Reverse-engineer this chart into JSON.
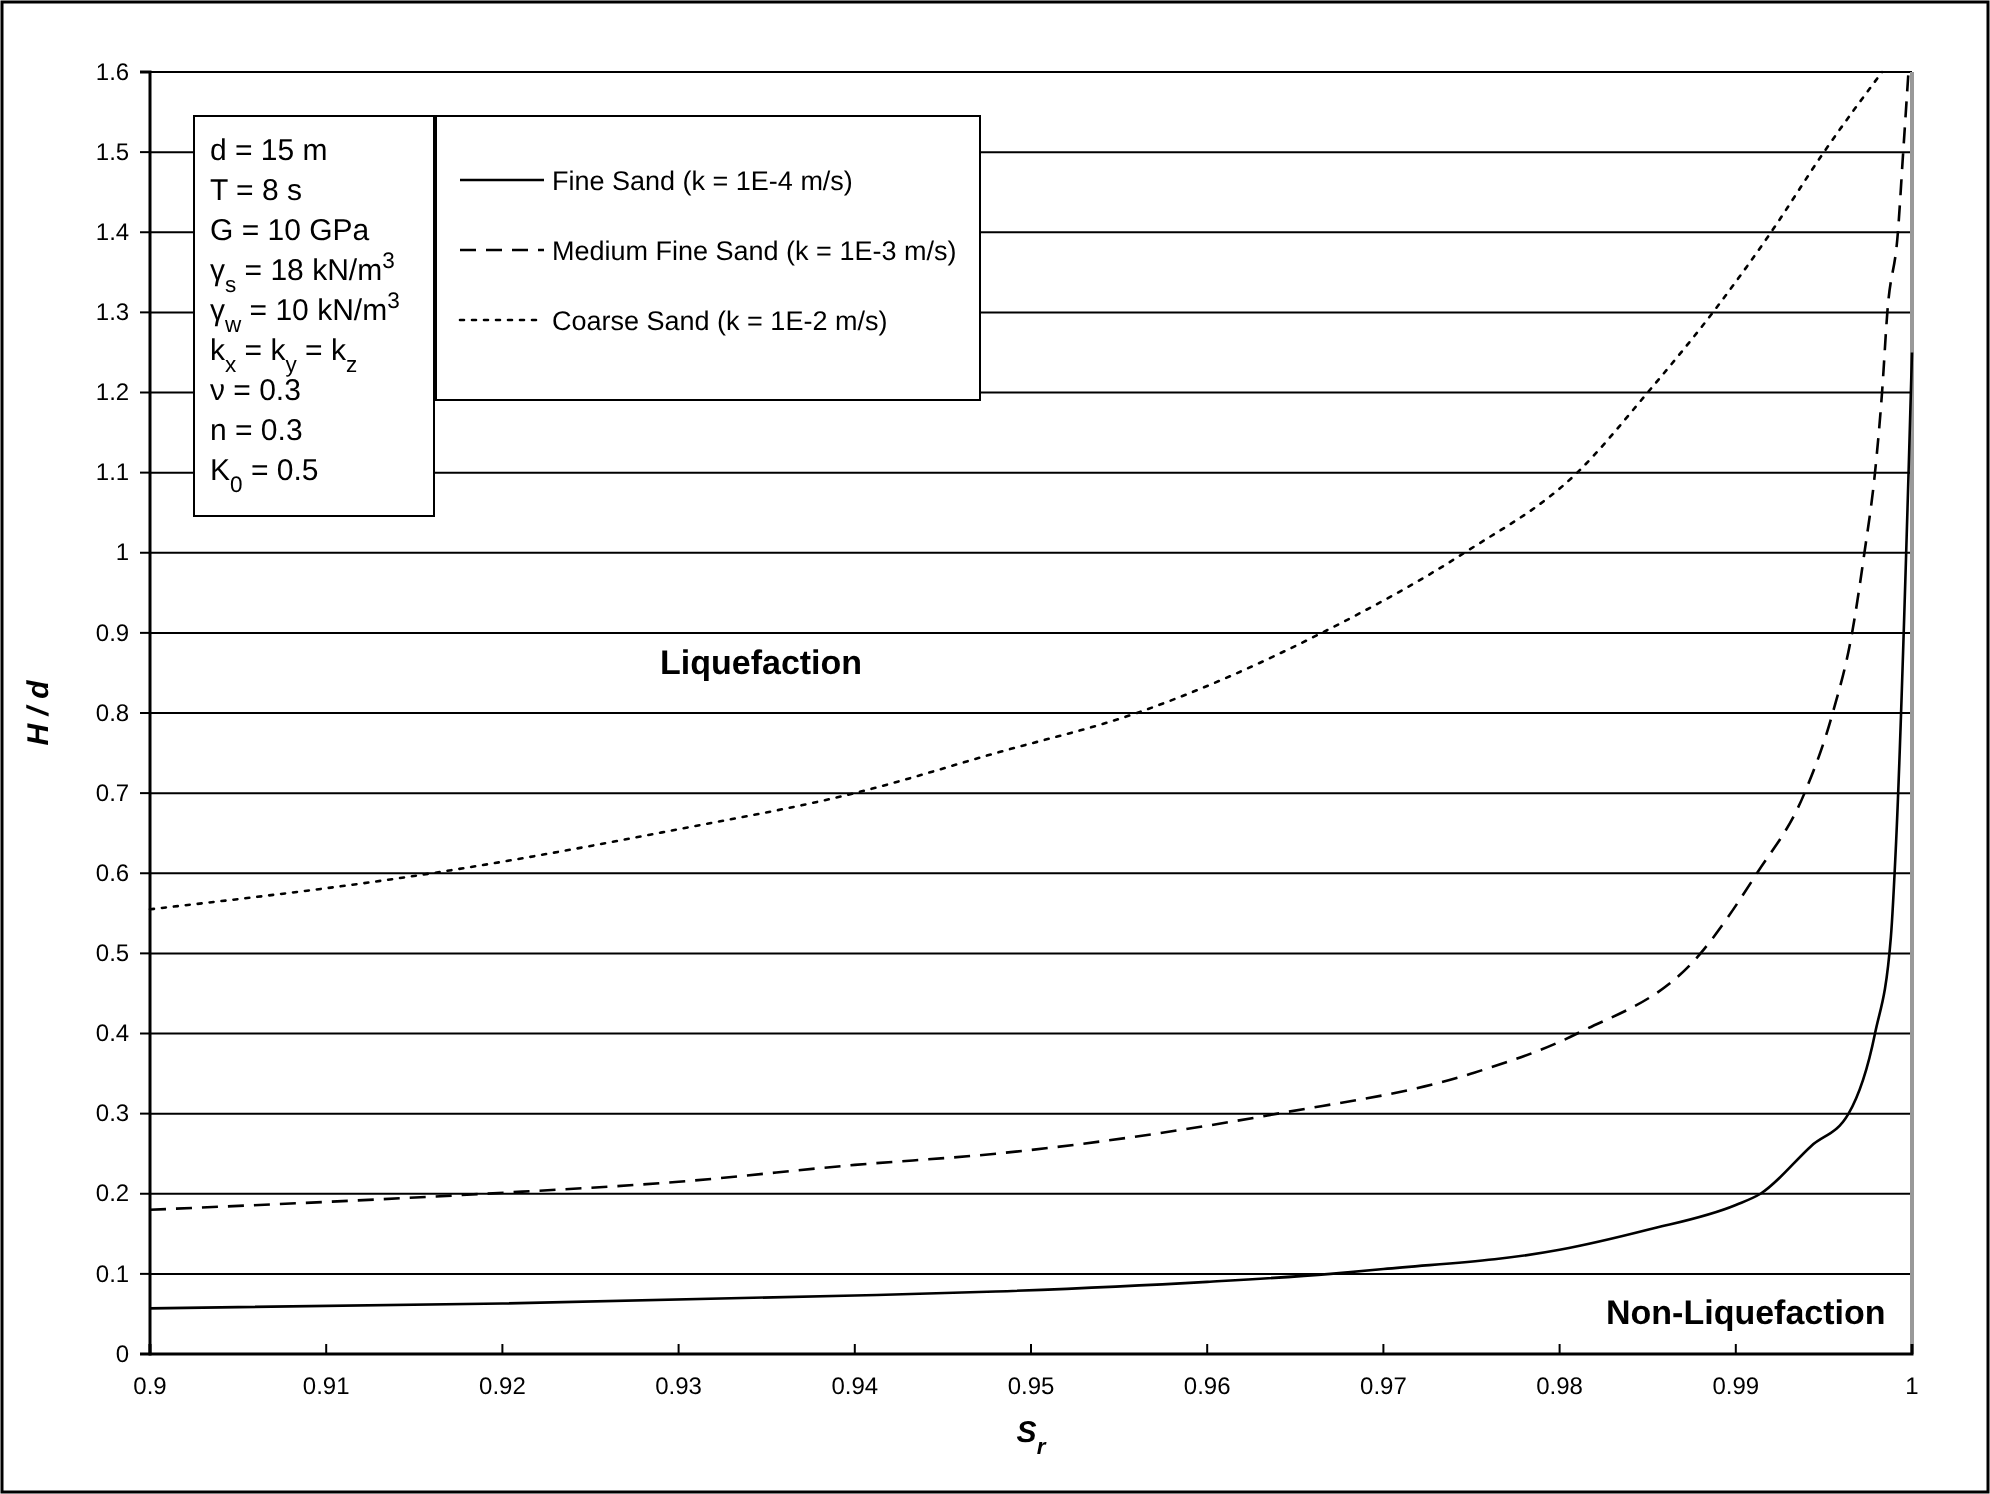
{
  "chart_data": {
    "type": "line",
    "xlabel": "S$_{r}$",
    "ylabel": "H / d",
    "xlim": [
      0.9,
      1
    ],
    "xticks": [
      0.9,
      0.91,
      0.92,
      0.93,
      0.94,
      0.95,
      0.96,
      0.97,
      0.98,
      0.99,
      1
    ],
    "ylim": [
      0,
      1.6
    ],
    "yticks": [
      0,
      0.1,
      0.2,
      0.3,
      0.4,
      0.5,
      0.6,
      0.7,
      0.8,
      0.9,
      1,
      1.1,
      1.2,
      1.3,
      1.4,
      1.5,
      1.6
    ],
    "grid": "y",
    "legend": "top left",
    "marker": "none",
    "series": [
      {
        "name": "Fine Sand (k = 1E-4 m/s)",
        "color": "#000000",
        "line_style": "solid",
        "x": [
          0.9,
          0.92,
          0.94,
          0.948,
          0.96,
          0.967,
          0.97,
          0.98,
          0.985,
          0.99,
          0.9914,
          0.9943,
          0.9964,
          0.9979,
          0.9988,
          0.9991,
          1
        ],
        "values": [
          0.057,
          0.063,
          0.073,
          0.078,
          0.09,
          0.1,
          0.106,
          0.13,
          0.155,
          0.186,
          0.2,
          0.26,
          0.3,
          0.4,
          0.52,
          0.64,
          1.25
        ]
      },
      {
        "name": "Medium Fine Sand (k = 1E-3 m/s)",
        "color": "#000000",
        "line_style": "dashed",
        "x": [
          0.9,
          0.919,
          0.93,
          0.94,
          0.948,
          0.964,
          0.975,
          0.981,
          0.988,
          0.9912,
          0.9939,
          0.9955,
          0.9966,
          0.9973,
          0.9979,
          0.9983,
          0.9986,
          0.9992,
          0.9995,
          0.9998
        ],
        "values": [
          0.18,
          0.2,
          0.215,
          0.236,
          0.25,
          0.3,
          0.35,
          0.4,
          0.5,
          0.6,
          0.7,
          0.8,
          0.9,
          1,
          1.1,
          1.2,
          1.3,
          1.4,
          1.5,
          1.6
        ]
      },
      {
        "name": "Coarse Sand (k = 1E-2 m/s)",
        "color": "#000000",
        "line_style": "dotted",
        "x": [
          0.9,
          0.916,
          0.93,
          0.94,
          0.948,
          0.956,
          0.9665,
          0.9746,
          0.981,
          0.985,
          0.9887,
          0.992,
          0.995,
          0.9983
        ],
        "values": [
          0.555,
          0.6,
          0.655,
          0.7,
          0.75,
          0.8,
          0.9,
          1,
          1.1,
          1.2,
          1.3,
          1.4,
          1.5,
          1.6
        ]
      }
    ],
    "annotations": [
      "d = 15 m\nT = 8 s\nG = 10 GPa\nγ$_{s}$ = 18 kN/m$^{3}$\nγ$_{w}$ = 10 kN/m$^{3}$\nk$_{x}$ = k$_{y}$ = k$_{z}$\nν = 0.3\nn = 0.3\nK$_{0}$ = 0.5",
      "Liquefaction",
      "Non-Liquefaction"
    ]
  }
}
